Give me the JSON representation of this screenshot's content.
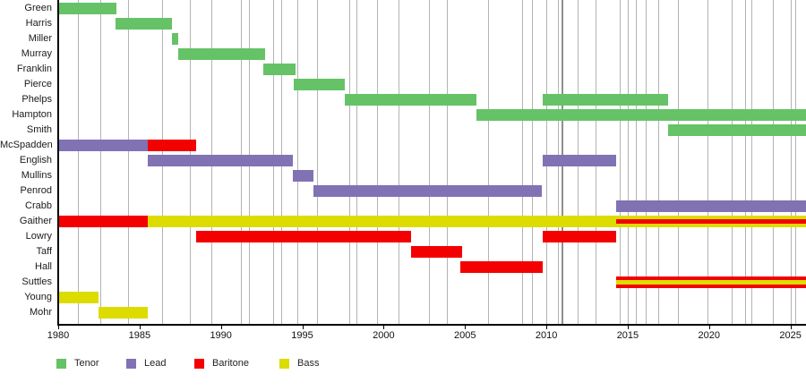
{
  "chart_data": {
    "type": "bar",
    "subtype": "gantt-membership-timeline",
    "title": "",
    "xlabel": "",
    "ylabel": "",
    "x_axis": {
      "start": 1980,
      "end": 2026,
      "tick_interval": 5,
      "tick_labels": [
        "1980",
        "1985",
        "1990",
        "1995",
        "2000",
        "2005",
        "2010",
        "2015",
        "2020",
        "2025"
      ]
    },
    "roles": {
      "Tenor": "#66c266",
      "Lead": "#8172b4",
      "Baritone": "#f30000",
      "Bass": "#dcdc00"
    },
    "rows": [
      {
        "label": "Green",
        "bars": [
          {
            "role": "Tenor",
            "from": 1980.0,
            "to": 1983.6
          }
        ]
      },
      {
        "label": "Harris",
        "bars": [
          {
            "role": "Tenor",
            "from": 1983.5,
            "to": 1987.0
          }
        ]
      },
      {
        "label": "Miller",
        "bars": [
          {
            "role": "Tenor",
            "from": 1987.0,
            "to": 1987.4
          }
        ]
      },
      {
        "label": "Murray",
        "bars": [
          {
            "role": "Tenor",
            "from": 1987.4,
            "to": 1992.7
          }
        ]
      },
      {
        "label": "Franklin",
        "bars": [
          {
            "role": "Tenor",
            "from": 1992.6,
            "to": 1994.6
          }
        ]
      },
      {
        "label": "Pierce",
        "bars": [
          {
            "role": "Tenor",
            "from": 1994.5,
            "to": 1997.6
          }
        ]
      },
      {
        "label": "Phelps",
        "bars": [
          {
            "role": "Tenor",
            "from": 1997.6,
            "to": 2005.7
          },
          {
            "role": "Tenor",
            "from": 2009.8,
            "to": 2017.5
          }
        ]
      },
      {
        "label": "Hampton",
        "bars": [
          {
            "role": "Tenor",
            "from": 2005.7,
            "to": 2026.0
          }
        ]
      },
      {
        "label": "Smith",
        "bars": [
          {
            "role": "Tenor",
            "from": 2017.5,
            "to": 2026.0
          }
        ]
      },
      {
        "label": "McSpadden",
        "bars": [
          {
            "role": "Lead",
            "from": 1980.0,
            "to": 1985.5
          },
          {
            "role": "Baritone",
            "from": 1985.5,
            "to": 1988.5
          }
        ]
      },
      {
        "label": "English",
        "bars": [
          {
            "role": "Lead",
            "from": 1985.5,
            "to": 1994.4
          },
          {
            "role": "Lead",
            "from": 2009.8,
            "to": 2014.3
          }
        ]
      },
      {
        "label": "Mullins",
        "bars": [
          {
            "role": "Lead",
            "from": 1994.4,
            "to": 1995.7
          }
        ]
      },
      {
        "label": "Penrod",
        "bars": [
          {
            "role": "Lead",
            "from": 1995.7,
            "to": 2009.7
          }
        ]
      },
      {
        "label": "Crabb",
        "bars": [
          {
            "role": "Lead",
            "from": 2014.3,
            "to": 2026.0
          }
        ]
      },
      {
        "label": "Gaither",
        "bars": [
          {
            "role": "Baritone",
            "from": 1980.0,
            "to": 1985.5
          },
          {
            "role": "Bass",
            "from": 1985.5,
            "to": 2026.0,
            "stripe": {
              "role": "Baritone",
              "from": 2014.3,
              "to": 2026.0
            }
          }
        ]
      },
      {
        "label": "Lowry",
        "bars": [
          {
            "role": "Baritone",
            "from": 1988.5,
            "to": 2001.7
          },
          {
            "role": "Baritone",
            "from": 2009.8,
            "to": 2014.3
          }
        ]
      },
      {
        "label": "Taff",
        "bars": [
          {
            "role": "Baritone",
            "from": 2001.7,
            "to": 2004.8
          }
        ]
      },
      {
        "label": "Hall",
        "bars": [
          {
            "role": "Baritone",
            "from": 2004.7,
            "to": 2009.8
          }
        ]
      },
      {
        "label": "Suttles",
        "bars": [
          {
            "role": "Baritone",
            "from": 2014.3,
            "to": 2026.0,
            "stripe": {
              "role": "Bass",
              "from": 2014.3,
              "to": 2026.0
            }
          }
        ]
      },
      {
        "label": "Young",
        "bars": [
          {
            "role": "Bass",
            "from": 1980.0,
            "to": 1982.5
          }
        ]
      },
      {
        "label": "Mohr",
        "bars": [
          {
            "role": "Bass",
            "from": 1982.5,
            "to": 1985.5
          }
        ]
      }
    ],
    "gridlines": [
      1981.2,
      1982.6,
      1984.3,
      1986.4,
      1988.1,
      1989.4,
      1991.2,
      1991.7,
      1993.2,
      1993.7,
      1994.7,
      1995.9,
      1997.9,
      1998.3,
      1999.6,
      2000.9,
      2002.8,
      2003.9,
      2006.4,
      2008.5,
      2009.1,
      2010.0,
      2010.7,
      2011.9,
      2013.0,
      2014.5,
      2015.0,
      2015.5,
      2016.1,
      2016.9,
      2018.1,
      2019.9,
      2021.4,
      2022.2,
      2022.6,
      2023.9,
      2025.0,
      2025.3
    ],
    "emphasis_gridlines": [
      2011.0
    ],
    "legend": [
      {
        "label": "Tenor",
        "color": "#66c266"
      },
      {
        "label": "Lead",
        "color": "#8172b4"
      },
      {
        "label": "Baritone",
        "color": "#f30000"
      },
      {
        "label": "Bass",
        "color": "#dcdc00"
      }
    ],
    "legend_position": "bottom"
  }
}
